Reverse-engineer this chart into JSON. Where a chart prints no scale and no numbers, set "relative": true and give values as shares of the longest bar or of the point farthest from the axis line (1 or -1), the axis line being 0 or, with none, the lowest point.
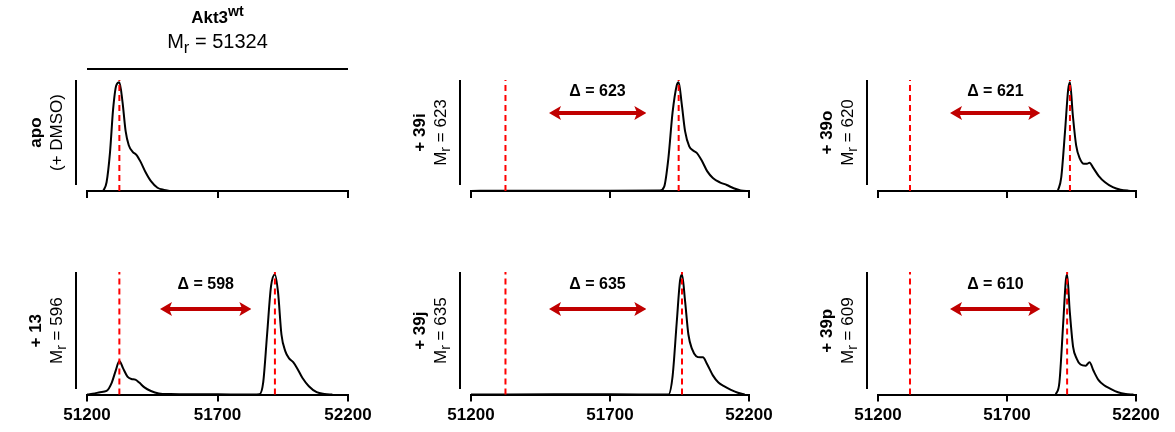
{
  "chart_data": [
    {
      "type": "line",
      "title": "Akt3$^{wt}$",
      "subtitle": "M$_{r}$ = 51324",
      "ylabel": "apo\n(+ DMSO)",
      "relative": true,
      "xlim": [
        51200,
        52200
      ],
      "xticks": [
        51200,
        51700,
        52200
      ],
      "tick_labels": false,
      "series": [
        {
          "color": "#000000",
          "x": [
            51262,
            51275,
            51288,
            51300,
            51312,
            51324,
            51336,
            51348,
            51360,
            51375,
            51390,
            51405,
            51425,
            51445,
            51470,
            51495,
            51520
          ],
          "values": [
            0,
            0.08,
            0.35,
            0.75,
            0.97,
            1,
            0.82,
            0.55,
            0.42,
            0.36,
            0.33,
            0.27,
            0.17,
            0.09,
            0.03,
            0.01,
            0
          ]
        }
      ],
      "ref_lines": [
        {
          "axis": "x",
          "value": 51324,
          "color": "#ff0000",
          "line_style": "dashed"
        }
      ]
    },
    {
      "type": "line",
      "ylabel": "+ 39i\nM$_{r}$ = 623",
      "relative": true,
      "xlim": [
        51200,
        52200
      ],
      "xticks": [
        51200,
        51700,
        52200
      ],
      "tick_labels": false,
      "annotations": [
        "Δ = 623"
      ],
      "series": [
        {
          "color": "#000000",
          "x": [
            51200,
            51300,
            51500,
            51700,
            51880,
            51895,
            51910,
            51925,
            51940,
            51947,
            51958,
            51970,
            51985,
            52000,
            52012,
            52030,
            52050,
            52070,
            52095,
            52120,
            52145,
            52170,
            52200
          ],
          "values": [
            0,
            0.003,
            0.002,
            0.002,
            0.005,
            0.04,
            0.3,
            0.72,
            0.97,
            1,
            0.8,
            0.55,
            0.41,
            0.37,
            0.35,
            0.28,
            0.18,
            0.12,
            0.08,
            0.055,
            0.025,
            0.005,
            0
          ]
        }
      ],
      "ref_lines": [
        {
          "axis": "x",
          "value": 51324,
          "color": "#ff0000",
          "line_style": "dashed"
        },
        {
          "axis": "x",
          "value": 51947,
          "color": "#ff0000",
          "line_style": "dashed"
        }
      ]
    },
    {
      "type": "line",
      "ylabel": "+ 39o\nM$_{r}$ = 620",
      "relative": true,
      "xlim": [
        51200,
        52200
      ],
      "xticks": [
        51200,
        51700,
        52200
      ],
      "tick_labels": false,
      "annotations": [
        "Δ = 621"
      ],
      "series": [
        {
          "color": "#000000",
          "x": [
            51897,
            51910,
            51925,
            51937,
            51944,
            51955,
            51968,
            51982,
            51998,
            52010,
            52020,
            52035,
            52055,
            52080,
            52110,
            52140,
            52170,
            52200
          ],
          "values": [
            0,
            0.12,
            0.55,
            0.93,
            1,
            0.7,
            0.42,
            0.3,
            0.25,
            0.25,
            0.26,
            0.21,
            0.14,
            0.08,
            0.035,
            0.012,
            0.003,
            0
          ]
        }
      ],
      "ref_lines": [
        {
          "axis": "x",
          "value": 51324,
          "color": "#ff0000",
          "line_style": "dashed"
        },
        {
          "axis": "x",
          "value": 51944,
          "color": "#ff0000",
          "line_style": "dashed"
        }
      ]
    },
    {
      "type": "line",
      "ylabel": "+ 13\nM$_{r}$ = 596",
      "relative": true,
      "xlim": [
        51200,
        52200
      ],
      "xticks": [
        51200,
        51700,
        52200
      ],
      "tick_labels": "x",
      "annotations": [
        "Δ = 598"
      ],
      "series": [
        {
          "color": "#000000",
          "x": [
            51200,
            51230,
            51250,
            51275,
            51295,
            51310,
            51324,
            51338,
            51355,
            51370,
            51385,
            51400,
            51420,
            51445,
            51475,
            51520,
            51600,
            51700,
            51800,
            51860,
            51875,
            51890,
            51905,
            51920,
            51932,
            51945,
            51960,
            51975,
            51990,
            52005,
            52025,
            52050,
            52080,
            52110,
            52140
          ],
          "values": [
            0,
            0.01,
            0.02,
            0.03,
            0.1,
            0.2,
            0.28,
            0.22,
            0.15,
            0.13,
            0.125,
            0.1,
            0.06,
            0.03,
            0.01,
            0.004,
            0.002,
            0.003,
            0,
            0.003,
            0.1,
            0.5,
            0.9,
            1,
            0.85,
            0.5,
            0.36,
            0.3,
            0.27,
            0.22,
            0.14,
            0.07,
            0.02,
            0.005,
            0
          ]
        }
      ],
      "ref_lines": [
        {
          "axis": "x",
          "value": 51324,
          "color": "#ff0000",
          "line_style": "dashed"
        },
        {
          "axis": "x",
          "value": 51920,
          "color": "#ff0000",
          "line_style": "dashed"
        }
      ]
    },
    {
      "type": "line",
      "ylabel": "+ 39j\nM$_{r}$ = 635",
      "relative": true,
      "xlim": [
        51200,
        52200
      ],
      "xticks": [
        51200,
        51700,
        52200
      ],
      "tick_labels": "x",
      "annotations": [
        "Δ = 635"
      ],
      "series": [
        {
          "color": "#000000",
          "x": [
            51200,
            51500,
            51700,
            51910,
            51925,
            51940,
            51952,
            51959,
            51970,
            51982,
            51995,
            52010,
            52025,
            52034,
            52050,
            52070,
            52090,
            52110,
            52135,
            52160,
            52185
          ],
          "values": [
            0,
            0.002,
            0.002,
            0,
            0.15,
            0.6,
            0.95,
            1,
            0.78,
            0.5,
            0.38,
            0.32,
            0.31,
            0.31,
            0.25,
            0.16,
            0.1,
            0.07,
            0.04,
            0.015,
            0
          ]
        }
      ],
      "ref_lines": [
        {
          "axis": "x",
          "value": 51324,
          "color": "#ff0000",
          "line_style": "dashed"
        },
        {
          "axis": "x",
          "value": 51959,
          "color": "#ff0000",
          "line_style": "dashed"
        }
      ]
    },
    {
      "type": "line",
      "ylabel": "+ 39p\nM$_{r}$ = 609",
      "relative": true,
      "xlim": [
        51200,
        52200
      ],
      "xticks": [
        51200,
        51700,
        52200
      ],
      "tick_labels": "x",
      "annotations": [
        "Δ = 610"
      ],
      "series": [
        {
          "color": "#000000",
          "x": [
            51889,
            51903,
            51918,
            51928,
            51933,
            51943,
            51956,
            51970,
            51985,
            52005,
            52020,
            52035,
            52055,
            52075,
            52100,
            52130,
            52160,
            52190
          ],
          "values": [
            0,
            0.1,
            0.6,
            0.95,
            1,
            0.7,
            0.4,
            0.3,
            0.25,
            0.24,
            0.27,
            0.2,
            0.12,
            0.08,
            0.05,
            0.02,
            0.005,
            0
          ]
        }
      ],
      "ref_lines": [
        {
          "axis": "x",
          "value": 51324,
          "color": "#ff0000",
          "line_style": "dashed"
        },
        {
          "axis": "x",
          "value": 51933,
          "color": "#ff0000",
          "line_style": "dashed"
        }
      ]
    }
  ]
}
